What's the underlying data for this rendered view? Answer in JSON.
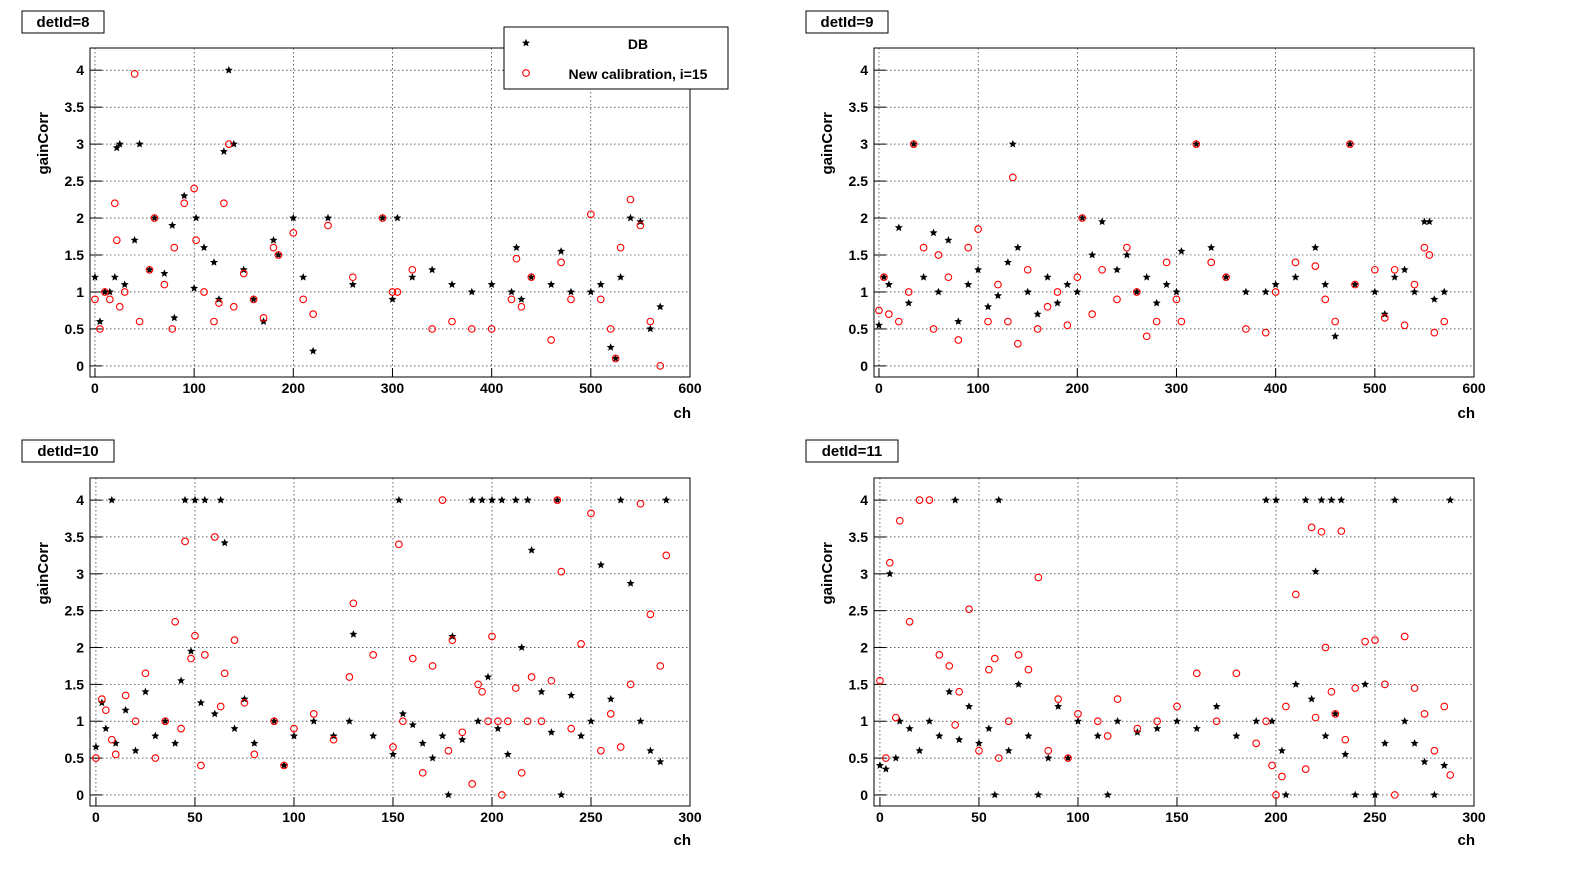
{
  "legend": {
    "entries": [
      {
        "label": "DB",
        "marker": "filled-star",
        "color": "#000000"
      },
      {
        "label": "New calibration, i=15",
        "marker": "open-circle",
        "color": "#ff0000"
      }
    ],
    "placement": "top-right of first panel"
  },
  "chart_data": [
    {
      "type": "scatter",
      "title": "detId=8",
      "xlabel": "ch",
      "ylabel": "gainCorr",
      "xlim": [
        -5,
        600
      ],
      "ylim": [
        -0.15,
        4.3
      ],
      "xticks": [
        0,
        100,
        200,
        300,
        400,
        500,
        600
      ],
      "yticks": [
        0,
        0.5,
        1,
        1.5,
        2,
        2.5,
        3,
        3.5,
        4
      ],
      "grid": true,
      "series": [
        {
          "name": "DB",
          "x": [
            0,
            5,
            10,
            15,
            20,
            22,
            25,
            30,
            40,
            45,
            55,
            60,
            70,
            78,
            80,
            90,
            100,
            102,
            110,
            120,
            125,
            130,
            135,
            140,
            150,
            160,
            170,
            180,
            185,
            200,
            210,
            220,
            235,
            260,
            290,
            300,
            305,
            320,
            340,
            360,
            380,
            400,
            420,
            425,
            430,
            440,
            460,
            470,
            480,
            500,
            510,
            520,
            525,
            530,
            540,
            550,
            560,
            570
          ],
          "y": [
            1.2,
            0.6,
            1.0,
            1.0,
            1.2,
            2.95,
            3.0,
            1.1,
            1.7,
            3.0,
            1.3,
            2.0,
            1.25,
            1.9,
            0.65,
            2.3,
            1.05,
            2.0,
            1.6,
            1.4,
            0.9,
            2.9,
            4.0,
            3.0,
            1.3,
            0.9,
            0.6,
            1.7,
            1.5,
            2.0,
            1.2,
            0.2,
            2.0,
            1.1,
            2.0,
            0.9,
            2.0,
            1.2,
            1.3,
            1.1,
            1.0,
            1.1,
            1.0,
            1.6,
            0.9,
            1.2,
            1.1,
            1.55,
            1.0,
            1.0,
            1.1,
            0.25,
            0.1,
            1.2,
            2.0,
            1.95,
            0.5,
            0.8
          ]
        },
        {
          "name": "New calibration, i=15",
          "x": [
            0,
            5,
            10,
            15,
            20,
            22,
            25,
            30,
            40,
            45,
            55,
            60,
            70,
            78,
            80,
            90,
            100,
            102,
            110,
            120,
            125,
            130,
            135,
            140,
            150,
            160,
            170,
            180,
            185,
            200,
            210,
            220,
            235,
            260,
            290,
            300,
            305,
            320,
            340,
            360,
            380,
            400,
            420,
            425,
            430,
            440,
            460,
            470,
            480,
            500,
            510,
            520,
            525,
            530,
            540,
            550,
            560,
            570
          ],
          "y": [
            0.9,
            0.5,
            1.0,
            0.9,
            2.2,
            1.7,
            0.8,
            1.0,
            3.95,
            0.6,
            1.3,
            2.0,
            1.1,
            0.5,
            1.6,
            2.2,
            2.4,
            1.7,
            1.0,
            0.6,
            0.85,
            2.2,
            3.0,
            0.8,
            1.25,
            0.9,
            0.65,
            1.6,
            1.5,
            1.8,
            0.9,
            0.7,
            1.9,
            1.2,
            2.0,
            1.0,
            1.0,
            1.3,
            0.5,
            0.6,
            0.5,
            0.5,
            0.9,
            1.45,
            0.8,
            1.2,
            0.35,
            1.4,
            0.9,
            2.05,
            0.9,
            0.5,
            0.1,
            1.6,
            2.25,
            1.9,
            0.6,
            0.0
          ]
        }
      ]
    },
    {
      "type": "scatter",
      "title": "detId=9",
      "xlabel": "ch",
      "ylabel": "gainCorr",
      "xlim": [
        -5,
        600
      ],
      "ylim": [
        -0.15,
        4.3
      ],
      "xticks": [
        0,
        100,
        200,
        300,
        400,
        500,
        600
      ],
      "yticks": [
        0,
        0.5,
        1,
        1.5,
        2,
        2.5,
        3,
        3.5,
        4
      ],
      "grid": true,
      "series": [
        {
          "name": "DB",
          "x": [
            0,
            5,
            10,
            20,
            30,
            35,
            45,
            55,
            60,
            70,
            80,
            90,
            100,
            110,
            120,
            130,
            135,
            140,
            150,
            160,
            170,
            180,
            190,
            200,
            205,
            215,
            225,
            240,
            250,
            260,
            270,
            280,
            290,
            300,
            305,
            320,
            335,
            350,
            370,
            390,
            400,
            420,
            440,
            450,
            460,
            475,
            480,
            500,
            510,
            520,
            530,
            540,
            550,
            555,
            560,
            570
          ],
          "y": [
            0.55,
            1.2,
            1.1,
            1.87,
            0.85,
            3.0,
            1.2,
            1.8,
            1.0,
            1.7,
            0.6,
            1.1,
            1.3,
            0.8,
            0.95,
            1.4,
            3.0,
            1.6,
            1.0,
            0.7,
            1.2,
            0.85,
            1.1,
            1.0,
            2.0,
            1.5,
            1.95,
            1.3,
            1.5,
            1.0,
            1.2,
            0.85,
            1.1,
            1.0,
            1.55,
            3.0,
            1.6,
            1.2,
            1.0,
            1.0,
            1.1,
            1.2,
            1.6,
            1.1,
            0.4,
            3.0,
            1.1,
            1.0,
            0.7,
            1.2,
            1.3,
            1.0,
            1.95,
            1.95,
            0.9,
            1.0
          ],
          "title_note": ""
        },
        {
          "name": "New calibration, i=15",
          "x": [
            0,
            5,
            10,
            20,
            30,
            35,
            45,
            55,
            60,
            70,
            80,
            90,
            100,
            110,
            120,
            130,
            135,
            140,
            150,
            160,
            170,
            180,
            190,
            200,
            205,
            215,
            225,
            240,
            250,
            260,
            270,
            280,
            290,
            300,
            305,
            320,
            335,
            350,
            370,
            390,
            400,
            420,
            440,
            450,
            460,
            475,
            480,
            500,
            510,
            520,
            530,
            540,
            550,
            555,
            560,
            570
          ],
          "y": [
            0.75,
            1.2,
            0.7,
            0.6,
            1.0,
            3.0,
            1.6,
            0.5,
            1.5,
            1.2,
            0.35,
            1.6,
            1.85,
            0.6,
            1.1,
            0.6,
            2.55,
            0.3,
            1.3,
            0.5,
            0.8,
            1.0,
            0.55,
            1.2,
            2.0,
            0.7,
            1.3,
            0.9,
            1.6,
            1.0,
            0.4,
            0.6,
            1.4,
            0.9,
            0.6,
            3.0,
            1.4,
            1.2,
            0.5,
            0.45,
            1.0,
            1.4,
            1.35,
            0.9,
            0.6,
            3.0,
            1.1,
            1.3,
            0.65,
            1.3,
            0.55,
            1.1,
            1.6,
            1.5,
            0.45,
            0.6
          ]
        }
      ]
    },
    {
      "type": "scatter",
      "title": "detId=10",
      "xlabel": "ch",
      "ylabel": "gainCorr",
      "xlim": [
        -3,
        300
      ],
      "ylim": [
        -0.15,
        4.3
      ],
      "xticks": [
        0,
        50,
        100,
        150,
        200,
        250,
        300
      ],
      "yticks": [
        0,
        0.5,
        1,
        1.5,
        2,
        2.5,
        3,
        3.5,
        4
      ],
      "grid": true,
      "series": [
        {
          "name": "DB",
          "x": [
            0,
            3,
            5,
            8,
            10,
            15,
            20,
            25,
            30,
            35,
            40,
            43,
            45,
            48,
            50,
            53,
            55,
            60,
            63,
            65,
            70,
            75,
            80,
            90,
            95,
            100,
            110,
            120,
            128,
            130,
            140,
            150,
            153,
            155,
            160,
            165,
            170,
            175,
            178,
            180,
            185,
            190,
            193,
            195,
            198,
            200,
            203,
            205,
            208,
            212,
            215,
            218,
            220,
            225,
            230,
            233,
            235,
            240,
            245,
            250,
            255,
            260,
            265,
            270,
            275,
            280,
            285,
            288
          ],
          "y": [
            0.65,
            1.25,
            0.9,
            4.0,
            0.7,
            1.15,
            0.6,
            1.4,
            0.8,
            1.0,
            0.7,
            1.55,
            4.0,
            1.95,
            4.0,
            1.25,
            4.0,
            1.1,
            4.0,
            3.42,
            0.9,
            1.3,
            0.7,
            1.0,
            0.4,
            0.8,
            1.0,
            0.8,
            1.0,
            2.18,
            0.8,
            0.55,
            4.0,
            1.1,
            0.95,
            0.7,
            0.5,
            0.8,
            0.0,
            2.15,
            0.75,
            4.0,
            1.0,
            4.0,
            1.6,
            4.0,
            0.9,
            4.0,
            0.55,
            4.0,
            2.0,
            4.0,
            3.32,
            1.4,
            0.85,
            4.0,
            0.0,
            1.35,
            0.8,
            1.0,
            3.12,
            1.3,
            4.0,
            2.87,
            1.0,
            0.6,
            0.45,
            4.0
          ]
        },
        {
          "name": "New calibration, i=15",
          "x": [
            0,
            3,
            5,
            8,
            10,
            15,
            20,
            25,
            30,
            35,
            40,
            43,
            45,
            48,
            50,
            53,
            55,
            60,
            63,
            65,
            70,
            75,
            80,
            90,
            95,
            100,
            110,
            120,
            128,
            130,
            140,
            150,
            153,
            155,
            160,
            165,
            170,
            175,
            178,
            180,
            185,
            190,
            193,
            195,
            198,
            200,
            203,
            205,
            208,
            212,
            215,
            218,
            220,
            225,
            230,
            233,
            235,
            240,
            245,
            250,
            255,
            260,
            265,
            270,
            275,
            280,
            285,
            288
          ],
          "y": [
            0.5,
            1.3,
            1.15,
            0.75,
            0.55,
            1.35,
            1.0,
            1.65,
            0.5,
            1.0,
            2.35,
            0.9,
            3.44,
            1.85,
            2.16,
            0.4,
            1.9,
            3.5,
            1.2,
            1.65,
            2.1,
            1.25,
            0.55,
            1.0,
            0.4,
            0.9,
            1.1,
            0.75,
            1.6,
            2.6,
            1.9,
            0.65,
            3.4,
            1.0,
            1.85,
            0.3,
            1.75,
            4.0,
            0.6,
            2.1,
            0.85,
            0.15,
            1.5,
            1.4,
            1.0,
            2.15,
            1.0,
            0.0,
            1.0,
            1.45,
            0.3,
            1.0,
            1.6,
            1.0,
            1.55,
            4.0,
            3.03,
            0.9,
            2.05,
            3.82,
            0.6,
            1.1,
            0.65,
            1.5,
            3.95,
            2.45,
            1.75,
            3.25
          ]
        }
      ]
    },
    {
      "type": "scatter",
      "title": "detId=11",
      "xlabel": "ch",
      "ylabel": "gainCorr",
      "xlim": [
        -3,
        300
      ],
      "ylim": [
        -0.15,
        4.3
      ],
      "xticks": [
        0,
        50,
        100,
        150,
        200,
        250,
        300
      ],
      "yticks": [
        0,
        0.5,
        1,
        1.5,
        2,
        2.5,
        3,
        3.5,
        4
      ],
      "grid": true,
      "series": [
        {
          "name": "DB",
          "x": [
            0,
            3,
            5,
            8,
            10,
            15,
            20,
            25,
            30,
            35,
            38,
            40,
            45,
            50,
            55,
            58,
            60,
            65,
            70,
            75,
            80,
            85,
            90,
            95,
            100,
            110,
            115,
            120,
            130,
            140,
            150,
            160,
            170,
            180,
            190,
            195,
            198,
            200,
            203,
            205,
            210,
            215,
            218,
            220,
            223,
            225,
            228,
            230,
            233,
            235,
            240,
            245,
            250,
            255,
            260,
            265,
            270,
            275,
            280,
            285,
            288
          ],
          "y": [
            0.4,
            0.35,
            3.0,
            0.5,
            1.0,
            0.9,
            0.6,
            1.0,
            0.8,
            1.4,
            4.0,
            0.75,
            1.2,
            0.7,
            0.9,
            0.0,
            4.0,
            0.6,
            1.5,
            0.8,
            0.0,
            0.5,
            1.2,
            0.5,
            1.0,
            0.8,
            0.0,
            1.0,
            0.85,
            0.9,
            1.0,
            0.9,
            1.2,
            0.8,
            1.0,
            4.0,
            1.0,
            4.0,
            0.6,
            0.0,
            1.5,
            4.0,
            1.3,
            3.03,
            4.0,
            0.8,
            4.0,
            1.1,
            4.0,
            0.55,
            0.0,
            1.5,
            0.0,
            0.7,
            4.0,
            1.0,
            0.7,
            0.45,
            0.0,
            0.4,
            4.0
          ]
        },
        {
          "name": "New calibration, i=15",
          "x": [
            0,
            3,
            5,
            8,
            10,
            15,
            20,
            25,
            30,
            35,
            38,
            40,
            45,
            50,
            55,
            58,
            60,
            65,
            70,
            75,
            80,
            85,
            90,
            95,
            100,
            110,
            115,
            120,
            130,
            140,
            150,
            160,
            170,
            180,
            190,
            195,
            198,
            200,
            203,
            205,
            210,
            215,
            218,
            220,
            223,
            225,
            228,
            230,
            233,
            235,
            240,
            245,
            250,
            255,
            260,
            265,
            270,
            275,
            280,
            285,
            288
          ],
          "y": [
            1.55,
            0.5,
            3.15,
            1.05,
            3.72,
            2.35,
            4.0,
            4.0,
            1.9,
            1.75,
            0.95,
            1.4,
            2.52,
            0.6,
            1.7,
            1.85,
            0.5,
            1.0,
            1.9,
            1.7,
            2.95,
            0.6,
            1.3,
            0.5,
            1.1,
            1.0,
            0.8,
            1.3,
            0.9,
            1.0,
            1.2,
            1.65,
            1.0,
            1.65,
            0.7,
            1.0,
            0.4,
            0.0,
            0.25,
            1.2,
            2.72,
            0.35,
            3.63,
            1.05,
            3.57,
            2.0,
            1.4,
            1.1,
            3.58,
            0.75,
            1.45,
            2.08,
            2.1,
            1.5,
            0.0,
            2.15,
            1.45,
            1.1,
            0.6,
            1.2,
            0.27
          ]
        }
      ]
    }
  ]
}
